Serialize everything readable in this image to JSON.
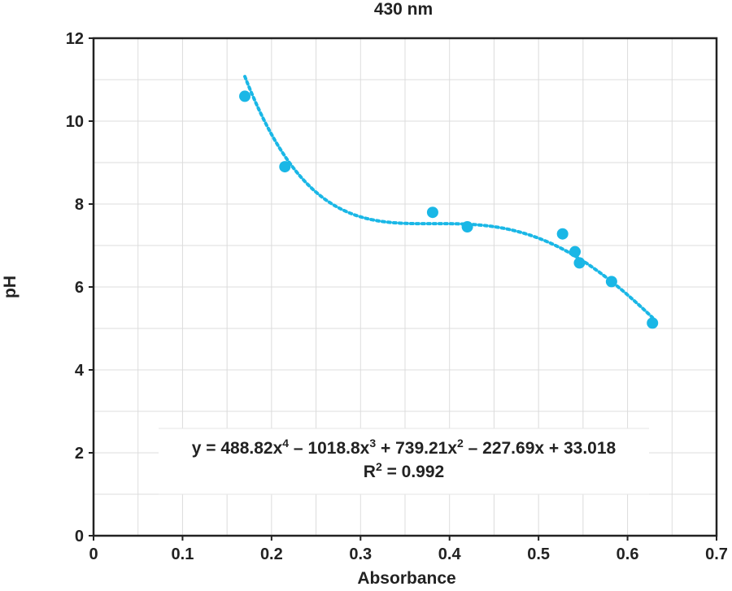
{
  "chart_data": {
    "type": "scatter",
    "title": "430 nm",
    "xlabel": "Absorbance",
    "ylabel": "pH",
    "xlim": [
      0,
      0.7
    ],
    "ylim": [
      0,
      12
    ],
    "x_ticks": [
      0,
      0.1,
      0.2,
      0.3,
      0.4,
      0.5,
      0.6,
      0.7
    ],
    "y_ticks": [
      0,
      2,
      4,
      6,
      8,
      10,
      12
    ],
    "x_tick_labels": [
      "0",
      "0.1",
      "0.2",
      "0.3",
      "0.4",
      "0.5",
      "0.6",
      "0.7"
    ],
    "y_tick_labels": [
      "0",
      "2",
      "4",
      "6",
      "8",
      "10",
      "12"
    ],
    "grid": true,
    "series": [
      {
        "points": [
          {
            "x": 0.17,
            "y": 10.6
          },
          {
            "x": 0.215,
            "y": 8.9
          },
          {
            "x": 0.381,
            "y": 7.8
          },
          {
            "x": 0.42,
            "y": 7.45
          },
          {
            "x": 0.527,
            "y": 7.28
          },
          {
            "x": 0.541,
            "y": 6.85
          },
          {
            "x": 0.546,
            "y": 6.58
          },
          {
            "x": 0.582,
            "y": 6.13
          },
          {
            "x": 0.628,
            "y": 5.13
          }
        ],
        "color": "#1ab7e6"
      }
    ],
    "trendline": {
      "type": "polynomial",
      "order": 4,
      "coefficients": [
        488.82,
        -1018.8,
        739.21,
        -227.69,
        33.018
      ],
      "x_range": [
        0.17,
        0.628
      ],
      "style": "dotted",
      "color": "#1ab7e6"
    },
    "annotation": {
      "equation": {
        "prefix": "y = 488.82x",
        "exp1": "4",
        "part2": " – 1018.8x",
        "exp2": "3",
        "part3": " + 739.21x",
        "exp3": "2",
        "part4": " – 227.69x + 33.018"
      },
      "r2": {
        "prefix": "R",
        "exp": "2",
        "value": " = 0.992"
      }
    }
  }
}
